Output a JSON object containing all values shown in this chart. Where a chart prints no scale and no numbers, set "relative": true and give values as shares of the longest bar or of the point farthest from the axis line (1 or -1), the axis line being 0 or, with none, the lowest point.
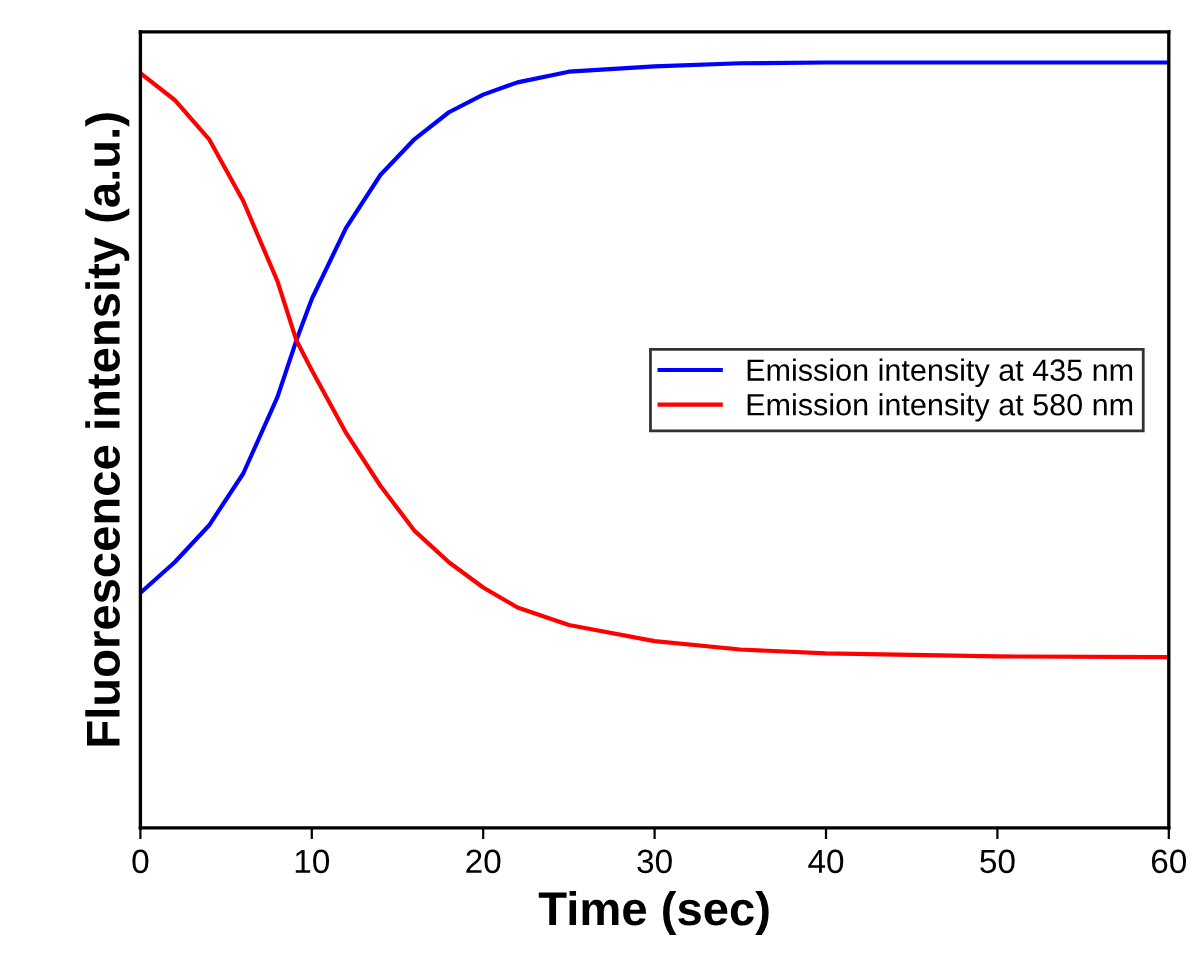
{
  "chart_data": {
    "type": "line",
    "xlabel": "Time (sec)",
    "ylabel": "Fluorescence intensity (a.u.)",
    "relative": true,
    "xlim": [
      0,
      60
    ],
    "xticks": [
      0,
      10,
      20,
      30,
      40,
      50,
      60
    ],
    "legend": "right",
    "marker": "none",
    "line_style": "solid",
    "x": [
      0,
      2,
      4,
      6,
      8,
      9.1,
      10,
      12,
      14,
      16,
      18,
      20,
      22,
      25,
      30,
      35,
      40,
      50,
      60
    ],
    "series": [
      {
        "name": "Emission intensity at 435 nm",
        "color": "#0000ff",
        "values": [
          0.307,
          0.347,
          0.395,
          0.463,
          0.563,
          0.637,
          0.691,
          0.784,
          0.853,
          0.9,
          0.935,
          0.958,
          0.974,
          0.988,
          0.995,
          0.999,
          1,
          1,
          1
        ]
      },
      {
        "name": "Emission intensity at 580 nm",
        "color": "#ff0000",
        "values": [
          0.986,
          0.951,
          0.9,
          0.819,
          0.714,
          0.637,
          0.598,
          0.516,
          0.447,
          0.388,
          0.347,
          0.314,
          0.288,
          0.265,
          0.244,
          0.233,
          0.228,
          0.224,
          0.223
        ]
      }
    ]
  }
}
